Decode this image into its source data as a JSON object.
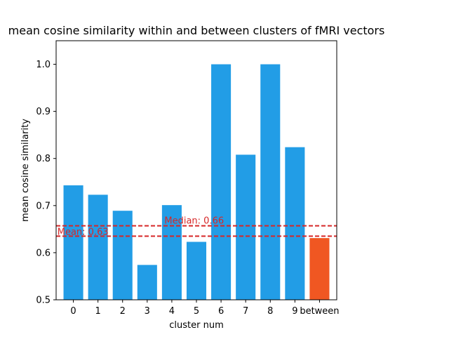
{
  "chart_data": {
    "type": "bar",
    "title": "mean cosine similarity within and between clusters of fMRI vectors",
    "xlabel": "cluster num",
    "ylabel": "mean cosine similarity",
    "categories": [
      "0",
      "1",
      "2",
      "3",
      "4",
      "5",
      "6",
      "7",
      "8",
      "9",
      "between"
    ],
    "values": [
      0.743,
      0.723,
      0.689,
      0.574,
      0.701,
      0.623,
      1.0,
      0.808,
      1.0,
      0.824,
      0.631
    ],
    "bar_colors": [
      "#229de6",
      "#229de6",
      "#229de6",
      "#229de6",
      "#229de6",
      "#229de6",
      "#229de6",
      "#229de6",
      "#229de6",
      "#229de6",
      "#f05722"
    ],
    "ylim": [
      0.5,
      1.05
    ],
    "yticks": [
      0.5,
      0.6,
      0.7,
      0.8,
      0.9,
      1.0
    ],
    "ytick_labels": [
      "0.5",
      "0.6",
      "0.7",
      "0.8",
      "0.9",
      "1.0"
    ],
    "grid": false,
    "reference_lines": [
      {
        "value": 0.635,
        "label": "Mean: 0.63",
        "color": "#d62728",
        "style": "dashed"
      },
      {
        "value": 0.657,
        "label": "Median: 0.66",
        "color": "#d62728",
        "style": "dashed"
      }
    ]
  }
}
